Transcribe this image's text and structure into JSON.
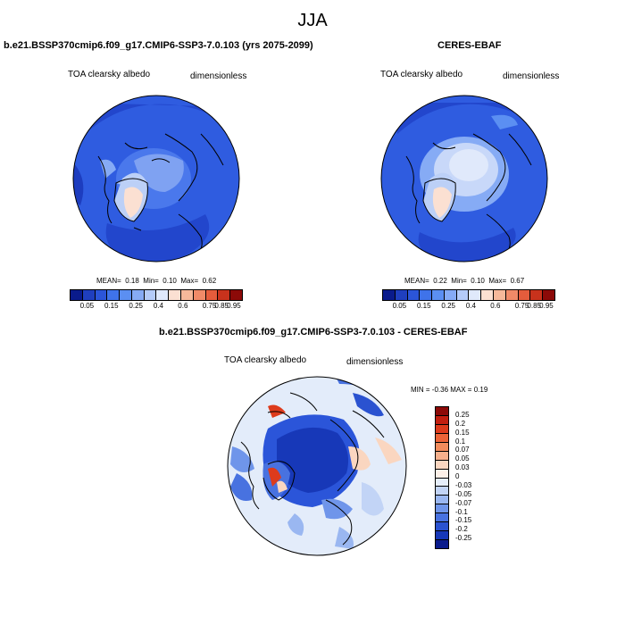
{
  "title": "JJA",
  "panels": {
    "model": {
      "case_title": "b.e21.BSSP370cmip6.f09_g17.CMIP6-SSP3-7.0.103 (yrs 2075-2099)",
      "variable": "TOA clearsky albedo",
      "units": "dimensionless",
      "stats": {
        "mean_label": "MEAN=",
        "mean": "0.18",
        "min_label": "Min=",
        "min": "0.10",
        "max_label": "Max=",
        "max": "0.62"
      }
    },
    "obs": {
      "case_title": "CERES-EBAF",
      "variable": "TOA clearsky albedo",
      "units": "dimensionless",
      "stats": {
        "mean_label": "MEAN=",
        "mean": "0.22",
        "min_label": "Min=",
        "min": "0.10",
        "max_label": "Max=",
        "max": "0.67"
      }
    },
    "diff": {
      "case_title": "b.e21.BSSP370cmip6.f09_g17.CMIP6-SSP3-7.0.103 - CERES-EBAF",
      "variable": "TOA clearsky albedo",
      "units": "dimensionless",
      "stats_text": "MIN = -0.36 MAX = 0.19"
    }
  },
  "colorbar_abs": {
    "labels": [
      "0.05",
      "0.15",
      "0.25",
      "0.4",
      "0.6",
      "0.75",
      "0.85",
      "0.95"
    ],
    "colors": [
      "#0a1b8c",
      "#1f3fbf",
      "#2b55d9",
      "#3f73ea",
      "#5b8ff2",
      "#86abf5",
      "#b4cbf8",
      "#e0e9fb",
      "#fbe0d2",
      "#f6b89a",
      "#f08a68",
      "#e45c3c",
      "#c8321c",
      "#8c0a08"
    ]
  },
  "colorbar_diff": {
    "labels": [
      "0.25",
      "0.2",
      "0.15",
      "0.1",
      "0.07",
      "0.05",
      "0.03",
      "0",
      "-0.03",
      "-0.05",
      "-0.07",
      "-0.1",
      "-0.15",
      "-0.2",
      "-0.25"
    ],
    "colors": [
      "#8c0a08",
      "#c21f10",
      "#dd3b1c",
      "#ec6438",
      "#f28c5c",
      "#f6b08c",
      "#fad6c0",
      "#fdf0e8",
      "#e6eefb",
      "#c2d4f6",
      "#9ab7f1",
      "#6f95ea",
      "#4872e0",
      "#2a52d0",
      "#1738b8",
      "#0a1b8c"
    ]
  }
}
